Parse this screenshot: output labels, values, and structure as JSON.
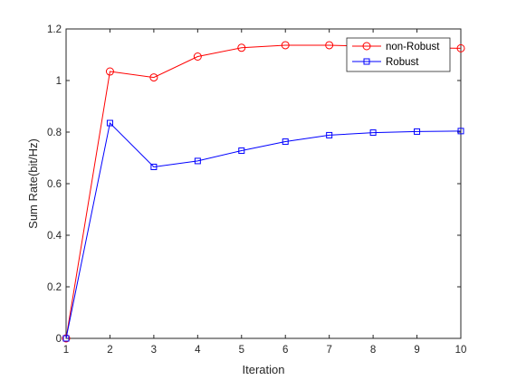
{
  "chart_data": {
    "type": "line",
    "xlabel": "Iteration",
    "ylabel": "Sum Rate(bit/Hz)",
    "xlim": [
      1,
      10
    ],
    "ylim": [
      0,
      1.2
    ],
    "xticks": [
      1,
      2,
      3,
      4,
      5,
      6,
      7,
      8,
      9,
      10
    ],
    "xtick_labels": [
      "1",
      "2",
      "3",
      "4",
      "5",
      "6",
      "7",
      "8",
      "9",
      "10"
    ],
    "yticks": [
      0,
      0.2,
      0.4,
      0.6,
      0.8,
      1,
      1.2
    ],
    "ytick_labels": [
      "0",
      "0.2",
      "0.4",
      "0.6",
      "0.8",
      "1",
      "1.2"
    ],
    "grid": false,
    "legend_position": "top-right",
    "x": [
      1,
      2,
      3,
      4,
      5,
      6,
      7,
      8,
      9,
      10
    ],
    "series": [
      {
        "name": "non-Robust",
        "color": "#ff0000",
        "marker": "circle",
        "values": [
          0,
          1.035,
          1.012,
          1.093,
          1.127,
          1.137,
          1.137,
          1.132,
          1.127,
          1.125
        ]
      },
      {
        "name": "Robust",
        "color": "#0000ff",
        "marker": "square",
        "values": [
          0,
          0.835,
          0.665,
          0.688,
          0.728,
          0.763,
          0.788,
          0.798,
          0.802,
          0.804
        ]
      }
    ]
  }
}
